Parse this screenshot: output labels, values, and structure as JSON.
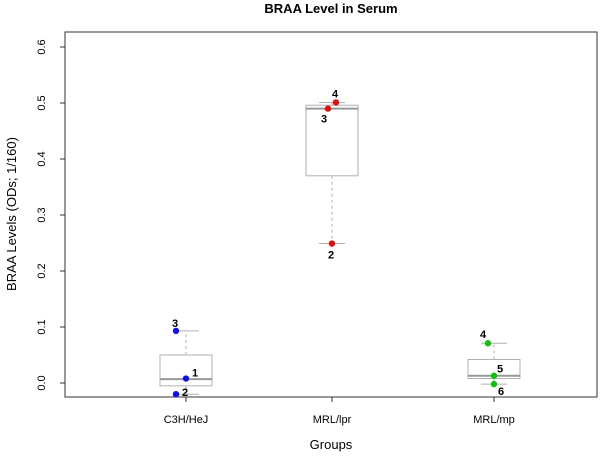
{
  "chart_data": {
    "type": "box",
    "title": "BRAA Level in Serum",
    "xlabel": "Groups",
    "ylabel": "BRAA Levels (ODs; 1/160)",
    "ylim": [
      -0.025,
      0.625
    ],
    "yticks": [
      "0.0",
      "0.1",
      "0.2",
      "0.3",
      "0.4",
      "0.5",
      "0.6"
    ],
    "grid": false,
    "categories": [
      "C3H/HeJ",
      "MRL/lpr",
      "MRL/mp"
    ],
    "boxes": [
      {
        "name": "C3H/HeJ",
        "whisker_low": -0.02,
        "q1": -0.005,
        "median": 0.007,
        "q3": 0.05,
        "whisker_high": 0.093,
        "color": "#1010e0"
      },
      {
        "name": "MRL/lpr",
        "whisker_low": 0.249,
        "q1": 0.37,
        "median": 0.49,
        "q3": 0.496,
        "whisker_high": 0.501,
        "color": "#e01010"
      },
      {
        "name": "MRL/mp",
        "whisker_low": -0.002,
        "q1": 0.008,
        "median": 0.013,
        "q3": 0.042,
        "whisker_high": 0.071,
        "color": "#10c010"
      }
    ],
    "points": [
      {
        "group": "C3H/HeJ",
        "label": "3",
        "y": 0.093,
        "color": "#1010e0"
      },
      {
        "group": "C3H/HeJ",
        "label": "1",
        "y": 0.008,
        "color": "#1010e0"
      },
      {
        "group": "C3H/HeJ",
        "label": "2",
        "y": -0.02,
        "color": "#1010e0"
      },
      {
        "group": "MRL/lpr",
        "label": "4",
        "y": 0.501,
        "color": "#e01010"
      },
      {
        "group": "MRL/lpr",
        "label": "3",
        "y": 0.49,
        "color": "#e01010"
      },
      {
        "group": "MRL/lpr",
        "label": "2",
        "y": 0.249,
        "color": "#e01010"
      },
      {
        "group": "MRL/mp",
        "label": "4",
        "y": 0.071,
        "color": "#10c010"
      },
      {
        "group": "MRL/mp",
        "label": "5",
        "y": 0.013,
        "color": "#10c010"
      },
      {
        "group": "MRL/mp",
        "label": "6",
        "y": -0.002,
        "color": "#10c010"
      }
    ]
  }
}
